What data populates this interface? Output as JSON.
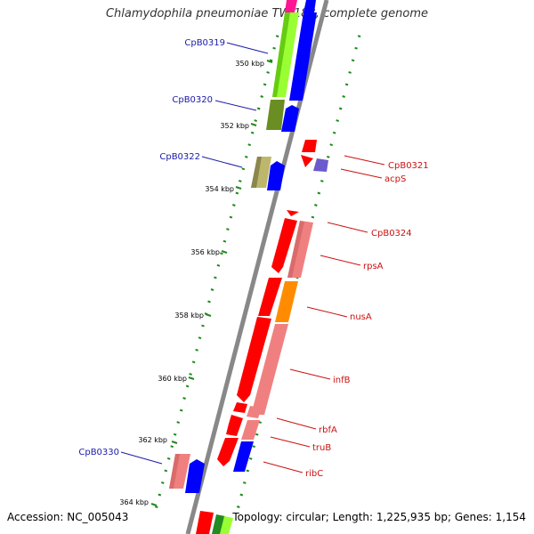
{
  "title": "Chlamydophila pneumoniae TW-183, complete genome",
  "footer": {
    "accession": "Accession: NC_005043",
    "summary": "Topology: circular; Length: 1,225,935 bp; Genes: 1,154"
  },
  "scale_labels": [
    "350 kbp",
    "352 kbp",
    "354 kbp",
    "356 kbp",
    "358 kbp",
    "360 kbp",
    "362 kbp",
    "364 kbp"
  ],
  "colors": {
    "backbone": "#888888",
    "tick": "#1f8a1f",
    "left_label": "#1a1aa8",
    "right_label": "#cc1111",
    "cds_red": "#ff0000",
    "cds_pink": "#f08080",
    "cds_blue": "#0000ff",
    "cds_lime": "#99ff33",
    "cds_olive": "#6b8e23",
    "cds_khaki": "#bdb76b",
    "cds_orange": "#ff8c00",
    "cds_slate": "#6a5acd",
    "cds_magenta": "#ff1493",
    "cds_green": "#228b22"
  },
  "genes_left": [
    "CpB0319",
    "CpB0320",
    "CpB0322",
    "CpB0330"
  ],
  "genes_right": [
    "CpB0321",
    "acpS",
    "CpB0324",
    "rpsA",
    "nusA",
    "infB",
    "rbfA",
    "truB",
    "ribC"
  ]
}
